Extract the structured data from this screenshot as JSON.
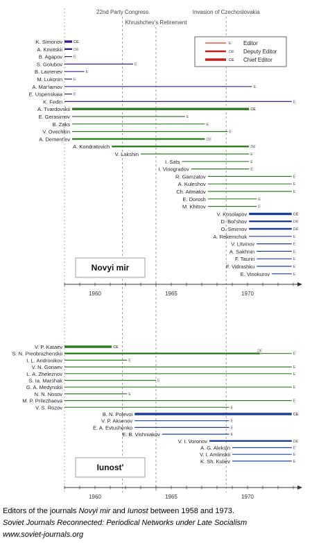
{
  "chart_data": [
    {
      "type": "gantt",
      "title": "Novyi mir",
      "x_ticks": [
        1960,
        1965,
        1970
      ],
      "xlim": [
        1957.9,
        1974.0
      ],
      "events": [
        {
          "label": "22nd Party Congress",
          "year": 1961.8
        },
        {
          "label": "Khrushchev's Retirement",
          "year": 1964.0
        },
        {
          "label": "Invasion of Czechoslovakia",
          "year": 1968.6
        }
      ],
      "legend": [
        {
          "role": "E",
          "label": "Editor"
        },
        {
          "role": "DE",
          "label": "Deputy Editor"
        },
        {
          "role": "CE",
          "label": "Chief Editor"
        }
      ],
      "rows": [
        {
          "name": "K. Simonov",
          "start": 1958.0,
          "end": 1958.5,
          "role": "CE"
        },
        {
          "name": "A. Krivitskii",
          "start": 1958.0,
          "end": 1958.5,
          "role": "DE"
        },
        {
          "name": "B. Agapov",
          "start": 1958.0,
          "end": 1958.5,
          "role": "E"
        },
        {
          "name": "S. Golubov",
          "start": 1958.0,
          "end": 1962.5,
          "role": "E"
        },
        {
          "name": "B. Lavrenev",
          "start": 1958.0,
          "end": 1959.3,
          "role": "E"
        },
        {
          "name": "M. Lukonin",
          "start": 1958.0,
          "end": 1958.5,
          "role": "E"
        },
        {
          "name": "A. Mar'iamov",
          "start": 1958.0,
          "end": 1970.3,
          "role": "E"
        },
        {
          "name": "E. Uspenskaia",
          "start": 1958.0,
          "end": 1958.5,
          "role": "E"
        },
        {
          "name": "K. Fedin",
          "start": 1958.0,
          "end": 1972.9,
          "role": "E"
        },
        {
          "name": "A. Tvardovskii",
          "start": 1958.5,
          "end": 1970.1,
          "role": "CE"
        },
        {
          "name": "E. Gerasimov",
          "start": 1958.5,
          "end": 1965.9,
          "role": "E"
        },
        {
          "name": "B. Zaks",
          "start": 1958.5,
          "end": 1967.2,
          "role": "E"
        },
        {
          "name": "V. Ovechkin",
          "start": 1958.5,
          "end": 1968.7,
          "role": "E"
        },
        {
          "name": "A. Dement'ev",
          "start": 1958.5,
          "end": 1967.2,
          "role": "DE"
        },
        {
          "name": "A. Kondratovich",
          "start": 1961.1,
          "end": 1970.1,
          "role": "DE"
        },
        {
          "name": "V. Lakshin",
          "start": 1963.0,
          "end": 1970.1,
          "role": "E"
        },
        {
          "name": "I. Sats",
          "start": 1965.7,
          "end": 1970.1,
          "role": "E"
        },
        {
          "name": "I. Vinogradov",
          "start": 1966.3,
          "end": 1970.1,
          "role": "E"
        },
        {
          "name": "R. Gamzatov",
          "start": 1967.4,
          "end": 1972.9,
          "role": "E"
        },
        {
          "name": "A. Kuleshov",
          "start": 1967.4,
          "end": 1972.9,
          "role": "E"
        },
        {
          "name": "Ch. Aitmatov",
          "start": 1967.4,
          "end": 1972.9,
          "role": "E"
        },
        {
          "name": "E. Dorosh",
          "start": 1967.4,
          "end": 1970.6,
          "role": "E"
        },
        {
          "name": "M. Khitrov",
          "start": 1967.4,
          "end": 1970.6,
          "role": "E"
        },
        {
          "name": "V. Kosolapov",
          "start": 1970.1,
          "end": 1972.9,
          "role": "CE"
        },
        {
          "name": "D. Bol'shov",
          "start": 1970.1,
          "end": 1972.9,
          "role": "DE"
        },
        {
          "name": "O. Smirnov",
          "start": 1970.1,
          "end": 1972.9,
          "role": "DE"
        },
        {
          "name": "A. Rekemchuk",
          "start": 1970.1,
          "end": 1972.9,
          "role": "E"
        },
        {
          "name": "V. Litvinov",
          "start": 1970.6,
          "end": 1972.9,
          "role": "E"
        },
        {
          "name": "A. Sakhnin",
          "start": 1970.6,
          "end": 1972.9,
          "role": "E"
        },
        {
          "name": "F. Taurin",
          "start": 1970.6,
          "end": 1972.9,
          "role": "E"
        },
        {
          "name": "F. Vidrashku",
          "start": 1970.6,
          "end": 1972.9,
          "role": "E"
        },
        {
          "name": "E. Vinokurov",
          "start": 1971.6,
          "end": 1972.9,
          "role": "E"
        }
      ]
    },
    {
      "type": "gantt",
      "title": "Iunost'",
      "x_ticks": [
        1960,
        1965,
        1970
      ],
      "xlim": [
        1957.9,
        1974.0
      ],
      "rows": [
        {
          "name": "V. P. Kataev",
          "start": 1958.0,
          "end": 1961.1,
          "role": "CE"
        },
        {
          "name": "S. N. Preobrazhenskii",
          "start": 1958.0,
          "end": 1970.8,
          "role": "DE",
          "then": {
            "end": 1972.9,
            "role": "E"
          }
        },
        {
          "name": "I. L. Andronikov",
          "start": 1958.0,
          "end": 1962.1,
          "role": "E"
        },
        {
          "name": "V. N. Goriaev",
          "start": 1958.0,
          "end": 1972.9,
          "role": "E"
        },
        {
          "name": "L. A. Zheleznov",
          "start": 1958.0,
          "end": 1972.9,
          "role": "E"
        },
        {
          "name": "S. Ia. Marshak",
          "start": 1958.0,
          "end": 1964.0,
          "role": "E"
        },
        {
          "name": "G. A. Medynskii",
          "start": 1958.0,
          "end": 1972.9,
          "role": "E"
        },
        {
          "name": "N. N. Nosov",
          "start": 1958.0,
          "end": 1962.1,
          "role": "E"
        },
        {
          "name": "M. P. Prilezhaeva",
          "start": 1958.0,
          "end": 1972.9,
          "role": "E"
        },
        {
          "name": "V. S. Rozov",
          "start": 1958.0,
          "end": 1968.8,
          "role": "E"
        },
        {
          "name": "B. N. Polevoi",
          "start": 1962.6,
          "end": 1972.9,
          "role": "CE"
        },
        {
          "name": "V. P. Aksenov",
          "start": 1962.6,
          "end": 1968.8,
          "role": "E"
        },
        {
          "name": "E. A. Evtushenko",
          "start": 1962.6,
          "end": 1968.8,
          "role": "E"
        },
        {
          "name": "E. B. Vishniakov",
          "start": 1964.4,
          "end": 1968.8,
          "role": "E"
        },
        {
          "name": "V. I. Voronov",
          "start": 1967.5,
          "end": 1972.9,
          "role": "DE"
        },
        {
          "name": "A. G. Aleksin",
          "start": 1969.0,
          "end": 1972.9,
          "role": "E"
        },
        {
          "name": "V. I. Amlinskii",
          "start": 1969.0,
          "end": 1972.9,
          "role": "E"
        },
        {
          "name": "K. Sh. Kuliev",
          "start": 1969.0,
          "end": 1972.9,
          "role": "E"
        }
      ]
    }
  ],
  "caption": {
    "line1_a": "Editors of the journals ",
    "line1_b": "Novyi mir",
    "line1_c": " and ",
    "line1_d": "Iunost",
    "line1_e": " between 1958 and 1973.",
    "line2": "Soviet Journals Reconnected: Periodical Networks under Late Socialism",
    "line3": "www.soviet-journals.org"
  },
  "colors": {
    "novyi_E": "#3d1e84",
    "novyi_tvardovskii_E": "#2f7d23",
    "novyi_green": "#2f7d23",
    "novyi_late": "#1d3f96",
    "iunost_green": "#2f7d23",
    "iunost_blue": "#1d3f96",
    "legend_E": "#d8382a",
    "legend_DE": "#c41e1e",
    "legend_CE": "#c41e1e",
    "tag": "#555555",
    "event_line": "#888888",
    "axis": "#333333"
  }
}
